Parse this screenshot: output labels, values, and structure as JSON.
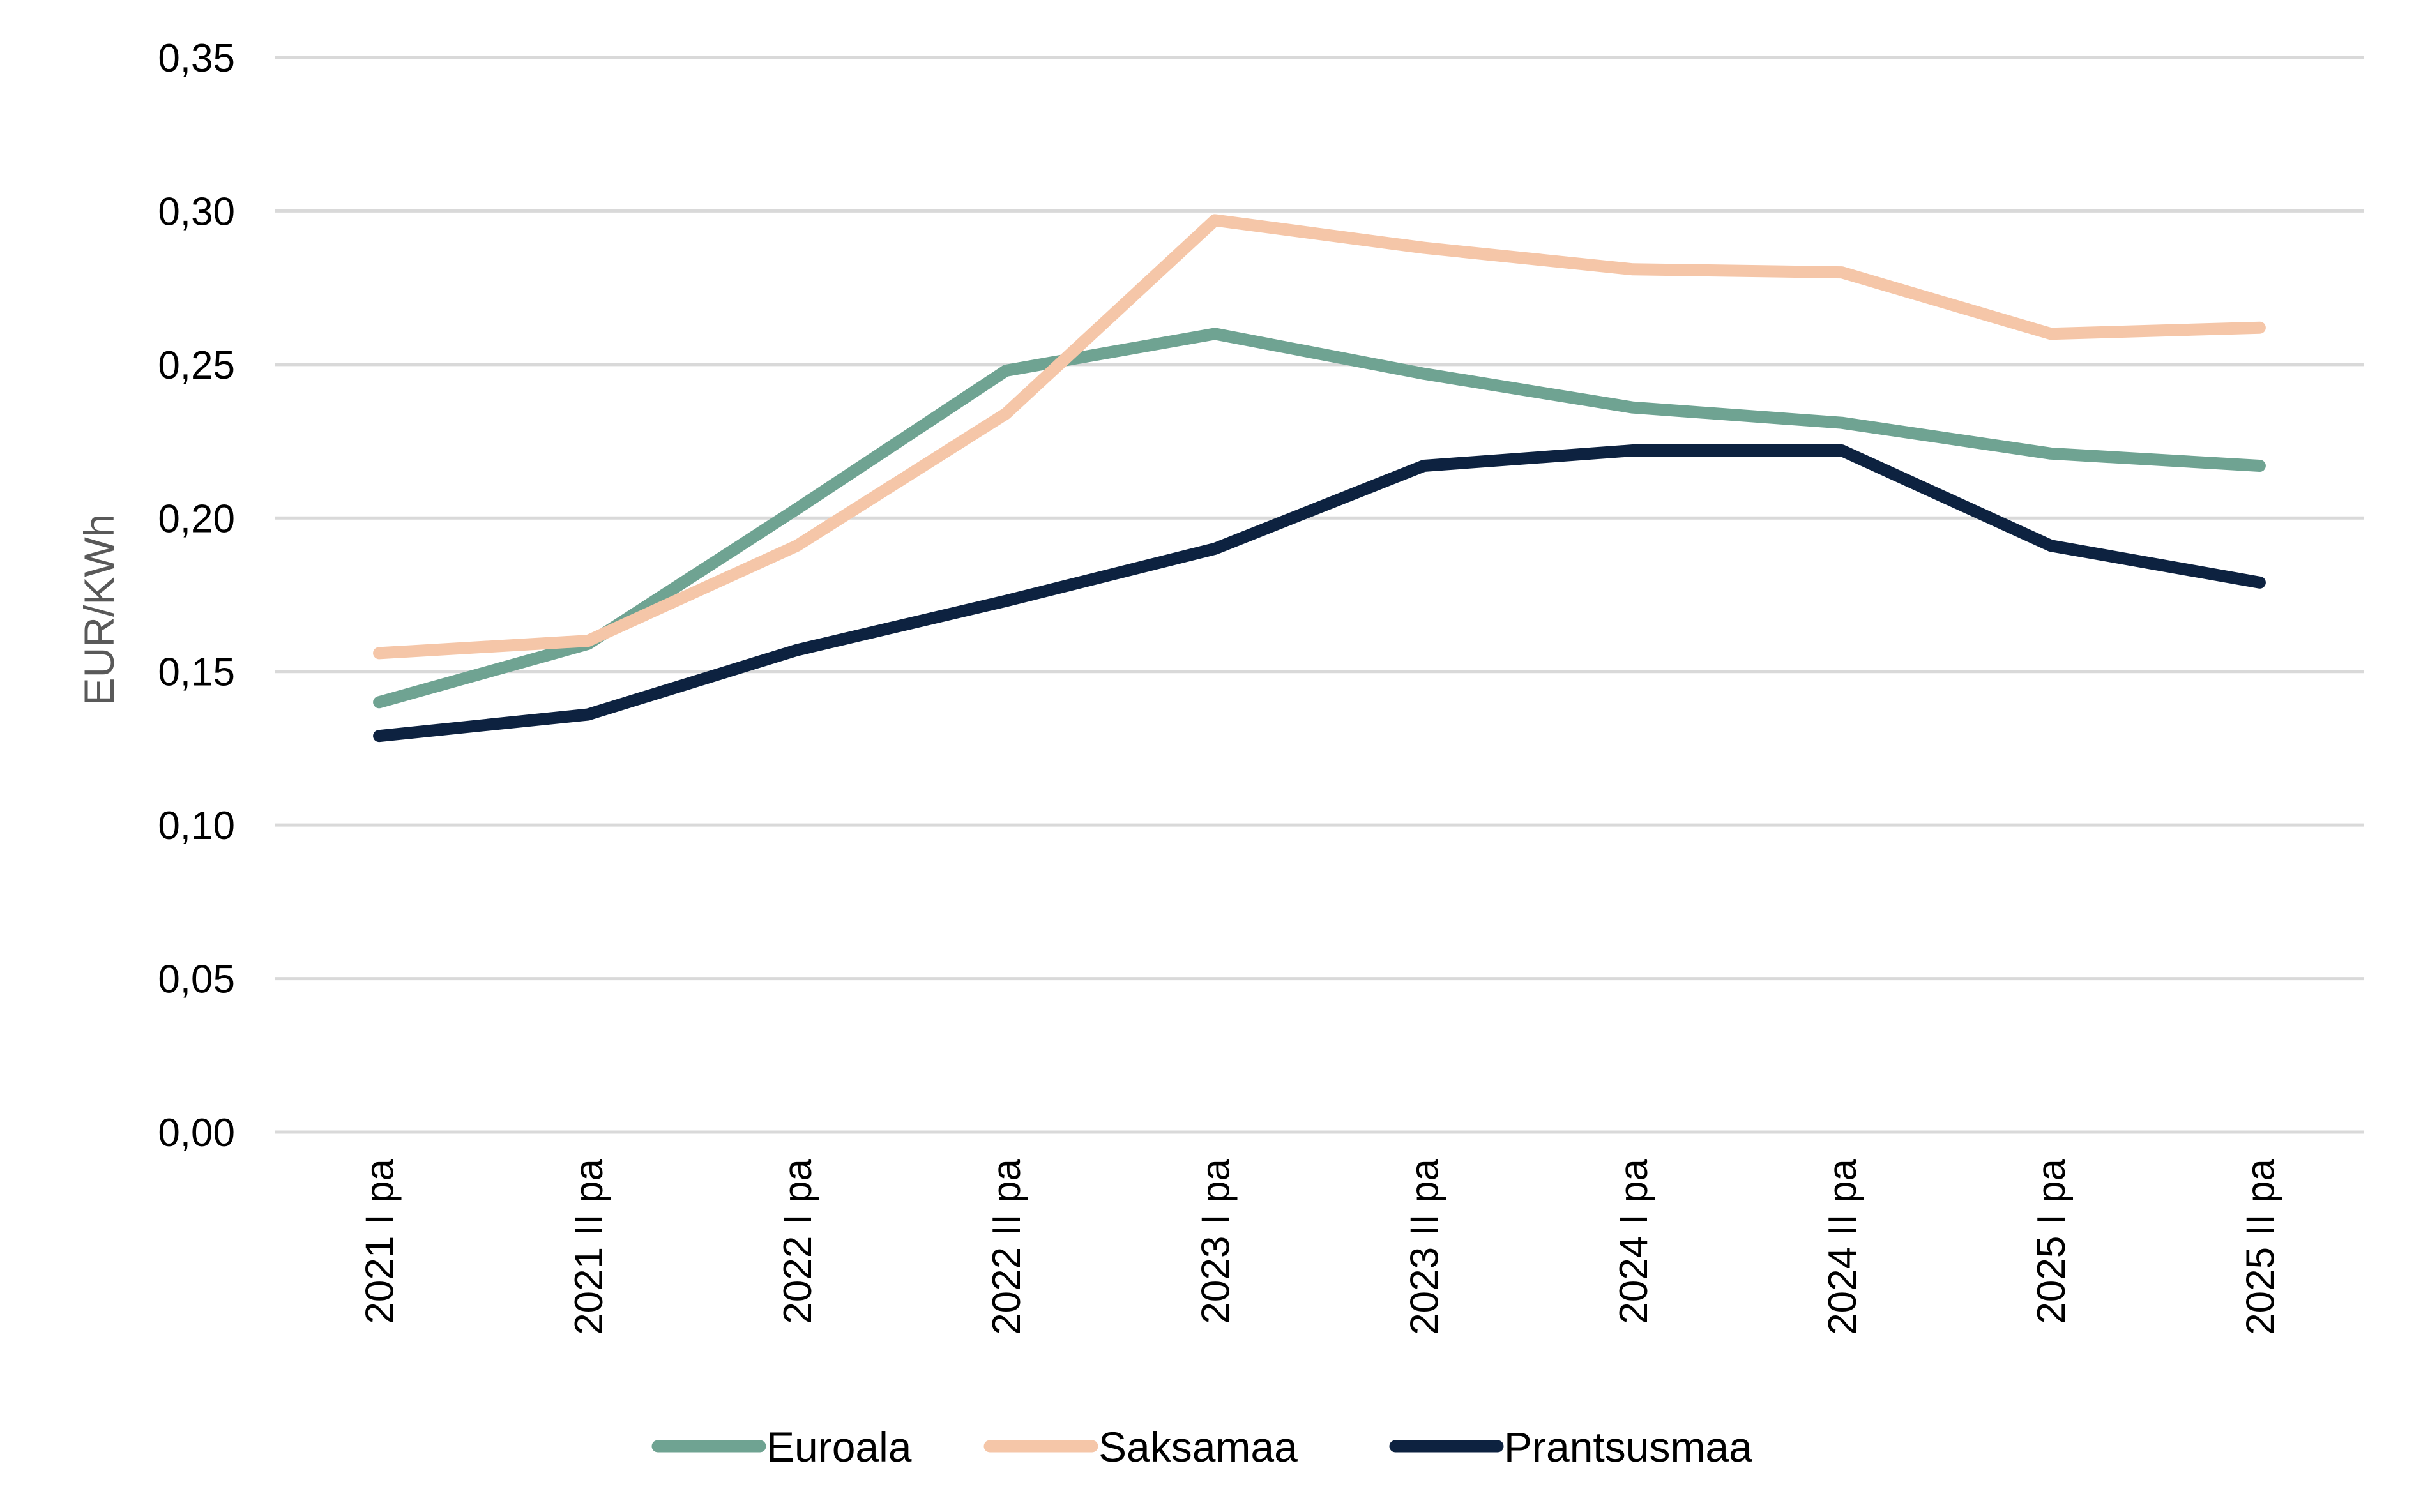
{
  "chart_data": {
    "type": "line",
    "title": "",
    "xlabel": "",
    "ylabel": "EUR/KWh",
    "categories": [
      "2021 I pa",
      "2021 II pa",
      "2022 I pa",
      "2022 II pa",
      "2023 I pa",
      "2023 II pa",
      "2024 I pa",
      "2024 II pa",
      "2025 I pa",
      "2025 II pa"
    ],
    "ylim": [
      0,
      0.35
    ],
    "yticks": [
      "0,00",
      "0,05",
      "0,10",
      "0,15",
      "0,20",
      "0,25",
      "0,30",
      "0,35"
    ],
    "grid": true,
    "legend_position": "bottom",
    "series": [
      {
        "name": "Euroala",
        "color": "#6fa392",
        "values": [
          0.14,
          0.159,
          0.203,
          0.248,
          0.26,
          0.247,
          0.236,
          0.231,
          0.221,
          0.217
        ]
      },
      {
        "name": "Saksamaa",
        "color": "#f5c6a8",
        "values": [
          0.156,
          0.16,
          0.191,
          0.234,
          0.297,
          0.288,
          0.281,
          0.28,
          0.26,
          0.262
        ]
      },
      {
        "name": "Prantsusmaa",
        "color": "#0d2240",
        "values": [
          0.129,
          0.136,
          0.157,
          0.173,
          0.19,
          0.217,
          0.222,
          0.222,
          0.191,
          0.179
        ]
      }
    ]
  }
}
